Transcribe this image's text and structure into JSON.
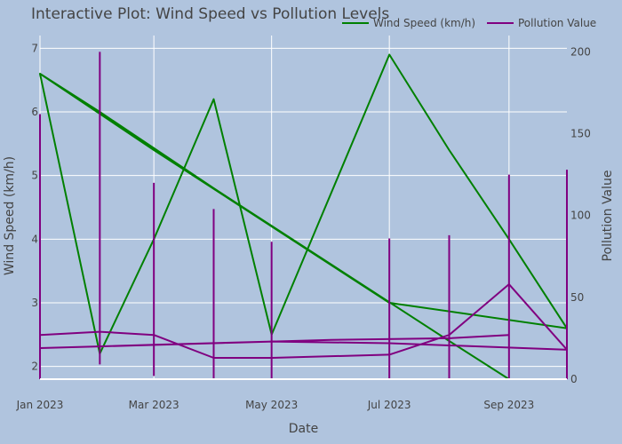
{
  "chart_data": {
    "type": "line",
    "title": "Interactive Plot: Wind Speed vs Pollution Levels",
    "xlabel": "Date",
    "ylabel_left": "Wind Speed (km/h)",
    "ylabel_right": "Pollution Value",
    "x_ticks": [
      "Jan 2023",
      "Mar 2023",
      "May 2023",
      "Jul 2023",
      "Sep 2023"
    ],
    "y_left_ticks": [
      "2",
      "3",
      "4",
      "5",
      "6",
      "7"
    ],
    "y_right_ticks": [
      "0",
      "50",
      "100",
      "150",
      "200"
    ],
    "x_range": [
      "2023-01-01",
      "2023-10-01"
    ],
    "y_left_range": [
      1.8,
      7.2
    ],
    "y_right_range": [
      0,
      210
    ],
    "legend_position": "top-right",
    "grid": true,
    "series": [
      {
        "name": "Wind Speed (km/h)",
        "axis": "left",
        "color": "#008000",
        "x": [
          "2023-01-01",
          "2023-02-01",
          "2023-03-01",
          "2023-04-01",
          "2023-05-01",
          "2023-07-01",
          "2023-08-01",
          "2023-09-01",
          "2023-10-01",
          "2023-07-01",
          "2023-05-01",
          "2023-03-01",
          "2023-01-01",
          "2023-02-01",
          "2023-04-01",
          "2023-06-01",
          "2023-08-01",
          "2023-09-01"
        ],
        "y": [
          6.6,
          2.2,
          4.0,
          6.2,
          2.5,
          6.9,
          5.4,
          4.0,
          2.6,
          3.0,
          4.2,
          5.4,
          6.6,
          6.0,
          4.8,
          3.6,
          2.4,
          1.8
        ]
      },
      {
        "name": "Pollution Value",
        "axis": "right",
        "color": "#800080",
        "x": [
          "2023-01-01",
          "2023-02-01",
          "2023-03-01",
          "2023-04-01",
          "2023-05-01",
          "2023-07-01",
          "2023-08-01",
          "2023-09-01",
          "2023-10-01",
          "2023-07-01",
          "2023-05-01",
          "2023-03-01",
          "2023-01-01",
          "2023-02-01",
          "2023-04-01",
          "2023-06-01",
          "2023-08-01",
          "2023-09-01"
        ],
        "y": [
          27,
          29,
          27,
          13,
          13,
          15,
          27,
          58,
          18,
          22,
          23,
          21,
          19,
          20,
          22,
          24,
          25,
          27
        ]
      }
    ],
    "error_bars": [
      {
        "axis": "right",
        "x": "2023-01-01",
        "low": 0,
        "high": 162
      },
      {
        "axis": "right",
        "x": "2023-02-01",
        "low": 9,
        "high": 200
      },
      {
        "axis": "right",
        "x": "2023-03-01",
        "low": 2,
        "high": 120
      },
      {
        "axis": "right",
        "x": "2023-04-01",
        "low": 0,
        "high": 104
      },
      {
        "axis": "right",
        "x": "2023-05-01",
        "low": 0,
        "high": 84
      },
      {
        "axis": "right",
        "x": "2023-07-01",
        "low": 0,
        "high": 86
      },
      {
        "axis": "right",
        "x": "2023-08-01",
        "low": 0,
        "high": 88
      },
      {
        "axis": "right",
        "x": "2023-09-01",
        "low": 0,
        "high": 125
      },
      {
        "axis": "right",
        "x": "2023-10-01",
        "low": 0,
        "high": 128
      }
    ]
  }
}
